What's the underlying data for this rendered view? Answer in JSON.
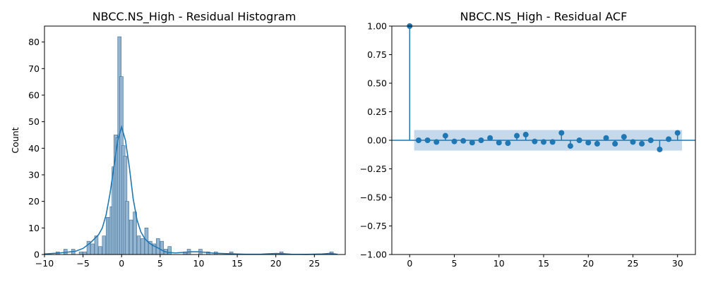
{
  "chart_data": [
    {
      "type": "bar",
      "subtype": "histogram-with-kde",
      "title": "NBCC.NS_High - Residual Histogram",
      "xlabel": "",
      "ylabel": "Count",
      "xlim": [
        -10,
        29
      ],
      "ylim": [
        0,
        86
      ],
      "xticks": [
        "−10",
        "−5",
        "0",
        "5",
        "10",
        "15",
        "20",
        "25"
      ],
      "yticks": [
        "0",
        "10",
        "20",
        "30",
        "40",
        "50",
        "60",
        "70",
        "80"
      ],
      "bin_width": 0.5,
      "bars": [
        {
          "x": -8.5,
          "count": 1
        },
        {
          "x": -7.5,
          "count": 2
        },
        {
          "x": -6.5,
          "count": 2
        },
        {
          "x": -5.5,
          "count": 1
        },
        {
          "x": -5.0,
          "count": 1
        },
        {
          "x": -4.5,
          "count": 5
        },
        {
          "x": -4.0,
          "count": 4
        },
        {
          "x": -3.5,
          "count": 7
        },
        {
          "x": -3.0,
          "count": 3
        },
        {
          "x": -2.5,
          "count": 7
        },
        {
          "x": -2.0,
          "count": 14
        },
        {
          "x": -1.75,
          "count": 14
        },
        {
          "x": -1.5,
          "count": 18
        },
        {
          "x": -1.25,
          "count": 33
        },
        {
          "x": -1.0,
          "count": 45
        },
        {
          "x": -0.75,
          "count": 44
        },
        {
          "x": -0.5,
          "count": 82
        },
        {
          "x": -0.25,
          "count": 67
        },
        {
          "x": 0.0,
          "count": 41
        },
        {
          "x": 0.25,
          "count": 37
        },
        {
          "x": 0.5,
          "count": 20
        },
        {
          "x": 1.0,
          "count": 13
        },
        {
          "x": 1.5,
          "count": 16
        },
        {
          "x": 2.0,
          "count": 7
        },
        {
          "x": 2.5,
          "count": 6
        },
        {
          "x": 3.0,
          "count": 10
        },
        {
          "x": 3.5,
          "count": 5
        },
        {
          "x": 4.0,
          "count": 4
        },
        {
          "x": 4.5,
          "count": 6
        },
        {
          "x": 5.0,
          "count": 5
        },
        {
          "x": 5.5,
          "count": 2
        },
        {
          "x": 6.0,
          "count": 3
        },
        {
          "x": 8.0,
          "count": 1
        },
        {
          "x": 8.5,
          "count": 2
        },
        {
          "x": 10.0,
          "count": 2
        },
        {
          "x": 11.0,
          "count": 1
        },
        {
          "x": 12.0,
          "count": 1
        },
        {
          "x": 14.0,
          "count": 1
        },
        {
          "x": 20.5,
          "count": 1
        },
        {
          "x": 27.0,
          "count": 1
        }
      ],
      "kde": [
        [
          -10,
          0.2
        ],
        [
          -8,
          0.6
        ],
        [
          -6,
          1.2
        ],
        [
          -5,
          2.3
        ],
        [
          -4,
          4.5
        ],
        [
          -3.5,
          6.0
        ],
        [
          -3,
          7.4
        ],
        [
          -2.5,
          10.0
        ],
        [
          -2,
          15.0
        ],
        [
          -1.5,
          23.0
        ],
        [
          -1,
          33.0
        ],
        [
          -0.5,
          43.0
        ],
        [
          0,
          48.0
        ],
        [
          0.5,
          43.0
        ],
        [
          1,
          33.0
        ],
        [
          1.5,
          21.0
        ],
        [
          2,
          13.0
        ],
        [
          2.5,
          8.5
        ],
        [
          3,
          6.0
        ],
        [
          3.5,
          4.5
        ],
        [
          4,
          3.5
        ],
        [
          4.5,
          2.8
        ],
        [
          5,
          2.0
        ],
        [
          5.5,
          1.2
        ],
        [
          6,
          0.8
        ],
        [
          7,
          0.6
        ],
        [
          8,
          0.8
        ],
        [
          9,
          1.0
        ],
        [
          10,
          1.0
        ],
        [
          11,
          0.8
        ],
        [
          12,
          0.5
        ],
        [
          14,
          0.3
        ],
        [
          16,
          0.1
        ],
        [
          18,
          0.1
        ],
        [
          20,
          0.4
        ],
        [
          21,
          0.3
        ],
        [
          22,
          0.1
        ],
        [
          24,
          0.05
        ],
        [
          26,
          0.2
        ],
        [
          27,
          0.4
        ],
        [
          28,
          0.1
        ]
      ],
      "colors": {
        "bar": "#93b5d1",
        "bar_edge": "#3d6c93",
        "kde": "#1f77b4"
      }
    },
    {
      "type": "line",
      "subtype": "stem-acf",
      "title": "NBCC.NS_High - Residual ACF",
      "xlabel": "",
      "ylabel": "",
      "xlim": [
        -2,
        32
      ],
      "ylim": [
        -1,
        1
      ],
      "xticks": [
        "0",
        "5",
        "10",
        "15",
        "20",
        "25",
        "30"
      ],
      "yticks": [
        "−1.00",
        "−0.75",
        "−0.50",
        "−0.25",
        "0.00",
        "0.25",
        "0.50",
        "0.75",
        "1.00"
      ],
      "confidence_band": {
        "from_lag": 0.5,
        "to_lag": 30.5,
        "upper": 0.09,
        "lower": -0.09
      },
      "lags": [
        0,
        1,
        2,
        3,
        4,
        5,
        6,
        7,
        8,
        9,
        10,
        11,
        12,
        13,
        14,
        15,
        16,
        17,
        18,
        19,
        20,
        21,
        22,
        23,
        24,
        25,
        26,
        27,
        28,
        29,
        30
      ],
      "values": [
        1.0,
        0.0,
        0.0,
        -0.015,
        0.04,
        -0.01,
        -0.005,
        -0.02,
        0.0,
        0.02,
        -0.02,
        -0.025,
        0.04,
        0.05,
        -0.01,
        -0.015,
        -0.015,
        0.065,
        -0.05,
        0.0,
        -0.02,
        -0.03,
        0.02,
        -0.03,
        0.03,
        -0.015,
        -0.03,
        0.0,
        -0.08,
        0.01,
        0.065
      ],
      "colors": {
        "stem": "#1f77b4",
        "band": "#c5d9ec"
      }
    }
  ]
}
